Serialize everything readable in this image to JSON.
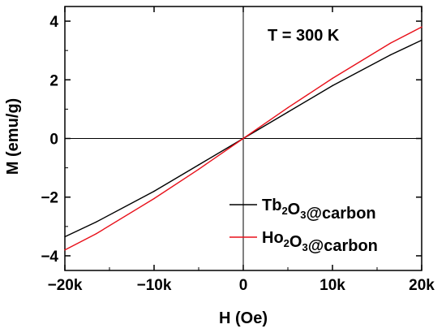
{
  "chart_data": {
    "type": "line",
    "xlabel": "H (Oe)",
    "ylabel": "M (emu/g)",
    "xlim": [
      -20000,
      20000
    ],
    "ylim": [
      -4.5,
      4.5
    ],
    "x_ticks": [
      -20000,
      -10000,
      0,
      10000,
      20000
    ],
    "x_tick_labels": [
      "−20k",
      "−10k",
      "0",
      "10k",
      "20k"
    ],
    "y_ticks": [
      -4,
      -2,
      0,
      2,
      4
    ],
    "y_tick_labels": [
      "−4",
      "−2",
      "0",
      "2",
      "4"
    ],
    "annotation": "T = 300 K",
    "legend_position": "bottom-right",
    "grid": false,
    "series": [
      {
        "name": "Tb2O3@carbon",
        "legend_parts": [
          {
            "text": "Tb",
            "sub": false
          },
          {
            "text": "2",
            "sub": true
          },
          {
            "text": "O",
            "sub": false
          },
          {
            "text": "3",
            "sub": true
          },
          {
            "text": "@carbon",
            "sub": false
          }
        ],
        "color": "#000000",
        "x": [
          -20000,
          -16500,
          -10000,
          -5000,
          0,
          5000,
          10000,
          16500,
          20000
        ],
        "y": [
          -3.35,
          -2.85,
          -1.8,
          -0.9,
          0,
          0.9,
          1.8,
          2.85,
          3.35
        ]
      },
      {
        "name": "Ho2O3@carbon",
        "legend_parts": [
          {
            "text": "Ho",
            "sub": false
          },
          {
            "text": "2",
            "sub": true
          },
          {
            "text": "O",
            "sub": false
          },
          {
            "text": "3",
            "sub": true
          },
          {
            "text": "@carbon",
            "sub": false
          }
        ],
        "color": "#e8101a",
        "x": [
          -20000,
          -16500,
          -10000,
          -5000,
          0,
          5000,
          10000,
          16500,
          20000
        ],
        "y": [
          -3.8,
          -3.25,
          -2.05,
          -1.05,
          0,
          1.05,
          2.05,
          3.25,
          3.8
        ]
      }
    ]
  }
}
